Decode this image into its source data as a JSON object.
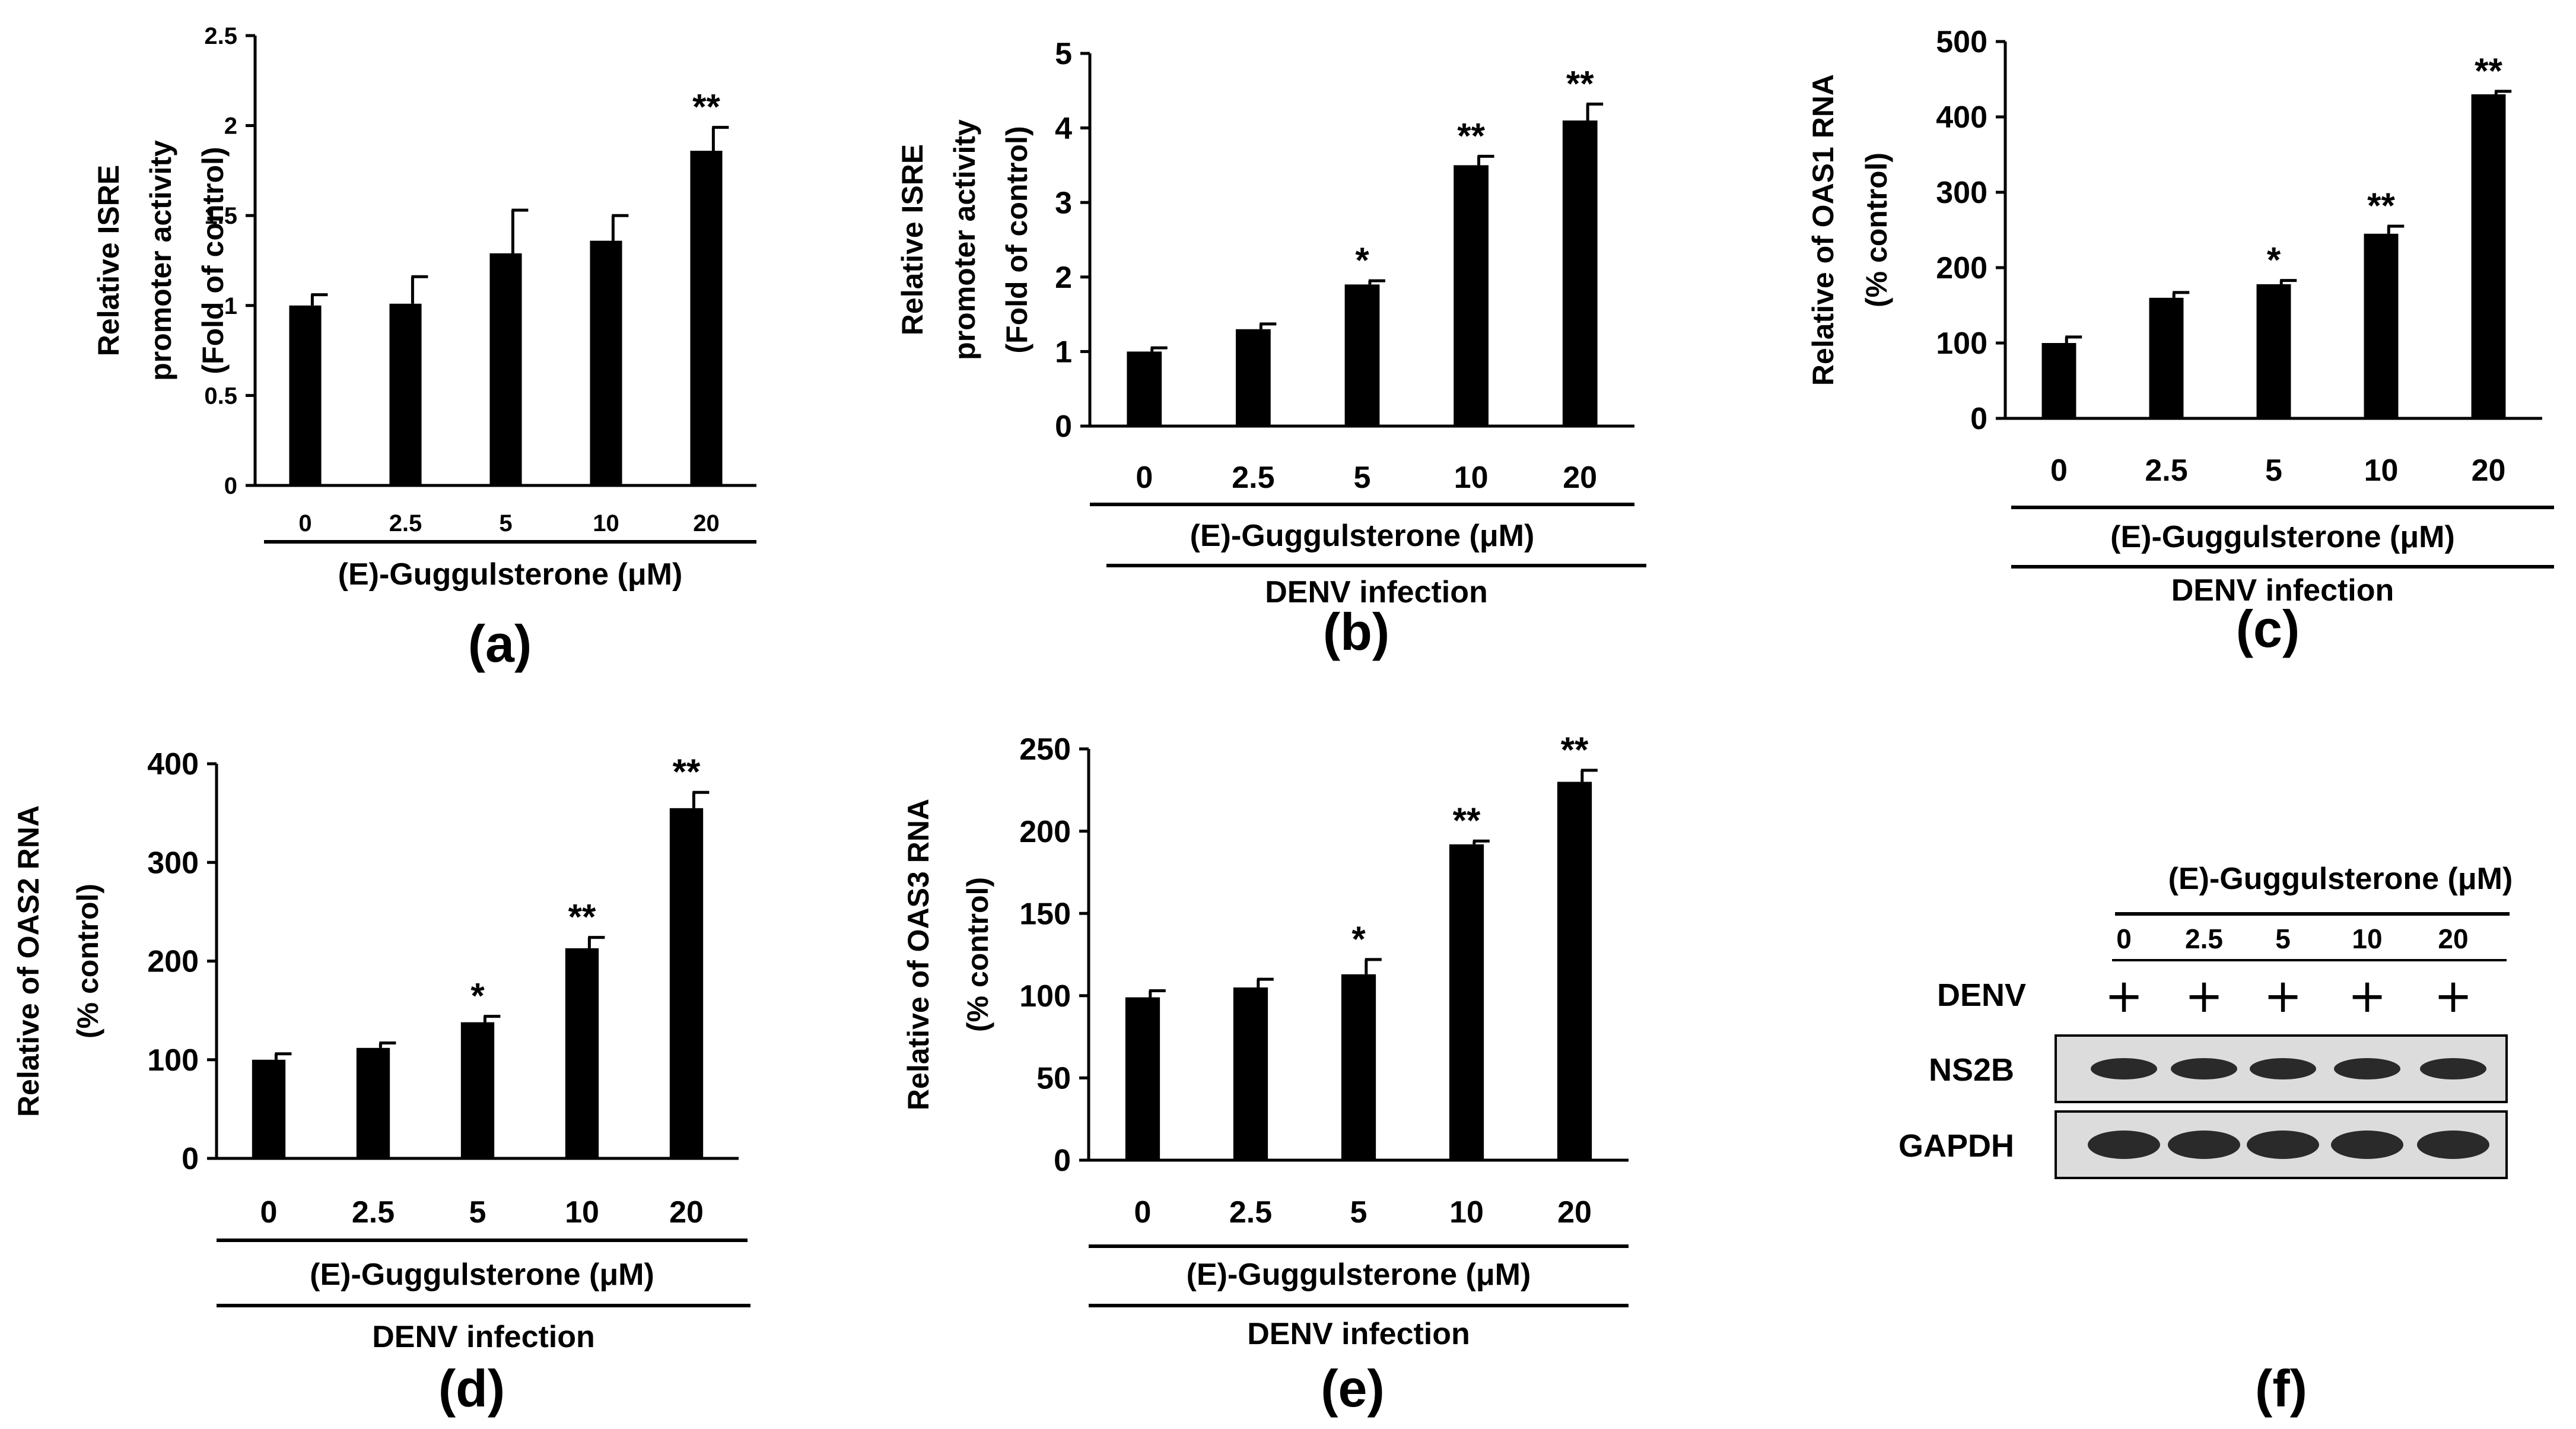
{
  "chart_data": [
    {
      "panel": "(a)",
      "type": "bar",
      "ylabel": [
        "Relative ISRE",
        "promoter activity",
        "(Fold of control)"
      ],
      "categories": [
        "0",
        "2.5",
        "5",
        "10",
        "20"
      ],
      "values": [
        1.0,
        1.01,
        1.29,
        1.36,
        1.86
      ],
      "errors": [
        0.06,
        0.15,
        0.24,
        0.14,
        0.13
      ],
      "significance": [
        "",
        "",
        "",
        "",
        "**"
      ],
      "ylim": [
        0,
        2.5
      ],
      "yticks": [
        "0",
        "0.5",
        "1",
        "1.5",
        "2",
        "2.5"
      ],
      "group_labels": [
        "(E)-Guggulsterone (μM)"
      ]
    },
    {
      "panel": "(b)",
      "type": "bar",
      "ylabel": [
        "Relative ISRE",
        "promoter activity",
        "(Fold of control)"
      ],
      "categories": [
        "0",
        "2.5",
        "5",
        "10",
        "20"
      ],
      "values": [
        1.0,
        1.3,
        1.9,
        3.5,
        4.1
      ],
      "errors": [
        0.05,
        0.07,
        0.05,
        0.12,
        0.22
      ],
      "significance": [
        "",
        "",
        "*",
        "**",
        "**"
      ],
      "ylim": [
        0,
        5
      ],
      "yticks": [
        "0",
        "1",
        "2",
        "3",
        "4",
        "5"
      ],
      "group_labels": [
        "(E)-Guggulsterone (μM)",
        "DENV infection"
      ]
    },
    {
      "panel": "(c)",
      "type": "bar",
      "ylabel": [
        "Relative of OAS1 RNA",
        "(% control)"
      ],
      "categories": [
        "0",
        "2.5",
        "5",
        "10",
        "20"
      ],
      "values": [
        100,
        160,
        178,
        245,
        430
      ],
      "errors": [
        8,
        7,
        5,
        10,
        4
      ],
      "significance": [
        "",
        "",
        "*",
        "**",
        "**"
      ],
      "ylim": [
        0,
        500
      ],
      "yticks": [
        "0",
        "100",
        "200",
        "300",
        "400",
        "500"
      ],
      "group_labels": [
        "(E)-Guggulsterone (μM)",
        "DENV infection"
      ]
    },
    {
      "panel": "(d)",
      "type": "bar",
      "ylabel": [
        "Relative of OAS2 RNA",
        "(% control)"
      ],
      "categories": [
        "0",
        "2.5",
        "5",
        "10",
        "20"
      ],
      "values": [
        100,
        112,
        138,
        213,
        355
      ],
      "errors": [
        6,
        5,
        6,
        11,
        16
      ],
      "significance": [
        "",
        "",
        "*",
        "**",
        "**"
      ],
      "ylim": [
        0,
        400
      ],
      "yticks": [
        "0",
        "100",
        "200",
        "300",
        "400"
      ],
      "group_labels": [
        "(E)-Guggulsterone (μM)",
        "DENV infection"
      ]
    },
    {
      "panel": "(e)",
      "type": "bar",
      "ylabel": [
        "Relative of OAS3 RNA",
        "(% control)"
      ],
      "categories": [
        "0",
        "2.5",
        "5",
        "10",
        "20"
      ],
      "values": [
        99,
        105,
        113,
        192,
        230
      ],
      "errors": [
        4,
        5,
        9,
        2,
        7
      ],
      "significance": [
        "",
        "",
        "*",
        "**",
        "**"
      ],
      "ylim": [
        0,
        250
      ],
      "yticks": [
        "0",
        "50",
        "100",
        "150",
        "200",
        "250"
      ],
      "group_labels": [
        "(E)-Guggulsterone (μM)",
        "DENV infection"
      ]
    }
  ],
  "blot": {
    "panel": "(f)",
    "header": "(E)-Guggulsterone (μM)",
    "lanes": [
      "0",
      "2.5",
      "5",
      "10",
      "20"
    ],
    "denv_label": "DENV",
    "denv_marks": [
      "+",
      "+",
      "+",
      "+",
      "+"
    ],
    "rows": [
      "NS2B",
      "GAPDH"
    ]
  }
}
